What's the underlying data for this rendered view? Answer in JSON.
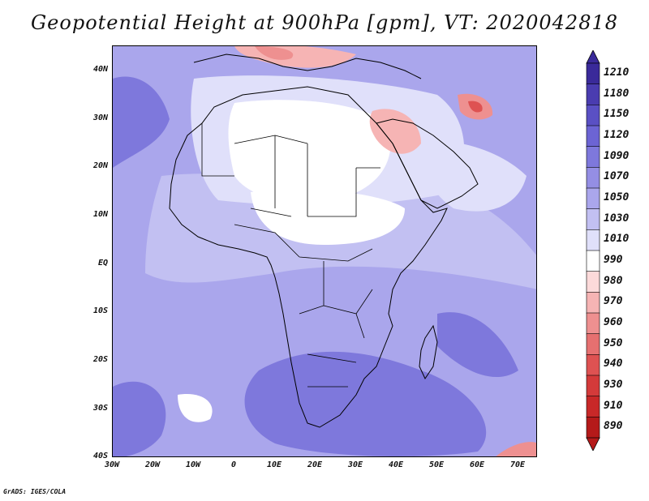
{
  "title": "Geopotential Height at 900hPa [gpm], VT: 2020042818",
  "credit": "GrADS: IGES/COLA",
  "map": {
    "x_axis": {
      "range_deg": [
        -30,
        75
      ],
      "ticks": [
        {
          "value": -30,
          "label": "30W"
        },
        {
          "value": -20,
          "label": "20W"
        },
        {
          "value": -10,
          "label": "10W"
        },
        {
          "value": 0,
          "label": "0"
        },
        {
          "value": 10,
          "label": "10E"
        },
        {
          "value": 20,
          "label": "20E"
        },
        {
          "value": 30,
          "label": "30E"
        },
        {
          "value": 40,
          "label": "40E"
        },
        {
          "value": 50,
          "label": "50E"
        },
        {
          "value": 60,
          "label": "60E"
        },
        {
          "value": 70,
          "label": "70E"
        }
      ]
    },
    "y_axis": {
      "range_deg": [
        -40,
        45
      ],
      "ticks": [
        {
          "value": 40,
          "label": "40N"
        },
        {
          "value": 30,
          "label": "30N"
        },
        {
          "value": 20,
          "label": "20N"
        },
        {
          "value": 10,
          "label": "10N"
        },
        {
          "value": 0,
          "label": "EQ"
        },
        {
          "value": -10,
          "label": "10S"
        },
        {
          "value": -20,
          "label": "20S"
        },
        {
          "value": -30,
          "label": "30S"
        },
        {
          "value": -40,
          "label": "40S"
        }
      ]
    }
  },
  "colorbar": {
    "labels": [
      "1210",
      "1180",
      "1150",
      "1120",
      "1090",
      "1070",
      "1050",
      "1030",
      "1010",
      "990",
      "980",
      "970",
      "960",
      "950",
      "940",
      "930",
      "910",
      "890"
    ],
    "colors": [
      "#3a2a9a",
      "#4a3cb0",
      "#5a50c4",
      "#6c64d4",
      "#7e78dc",
      "#948ee4",
      "#aaa6ec",
      "#c2c0f2",
      "#e0e0fa",
      "#ffffff",
      "#fcdada",
      "#f6b4b4",
      "#ee9090",
      "#e67070",
      "#de5252",
      "#d43a3a",
      "#c82828",
      "#b51a1a"
    ]
  },
  "regions": {
    "base": "#aaa6ec",
    "lighter": "#c2c0f2",
    "pale": "#e0e0fa",
    "white": "#ffffff",
    "deep": "#7e78dc",
    "red_light": "#f6b4b4",
    "red_mid": "#ee9090",
    "red_dark": "#de5252"
  }
}
